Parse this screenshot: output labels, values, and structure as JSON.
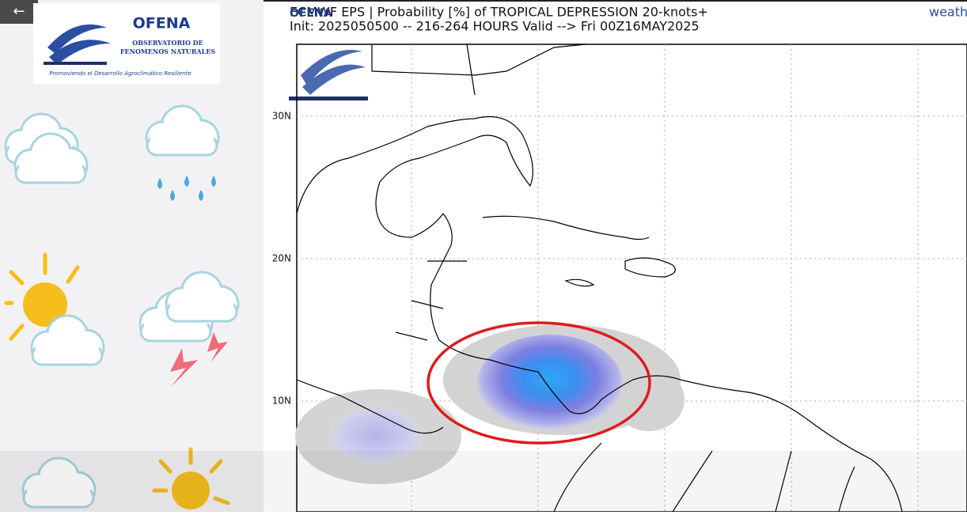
{
  "back_button": {
    "label": "←"
  },
  "logo": {
    "title": "OFENA",
    "subtitle_1": "OBSERVATORIO DE",
    "subtitle_2": "FENOMENOS NATURALES",
    "slogan": "Promoviendo el Desarrollo Agroclimático Resiliente"
  },
  "map": {
    "title": "ECMWF EPS | Probability [%] of TROPICAL DEPRESSION 20-knots+",
    "subtitle": "Init: 2025050500 -- 216-264 HOURS Valid --> Fri 00Z16MAY2025",
    "corner_text": "weath",
    "watermark": "OFENA",
    "lat_labels": [
      "30N",
      "20N",
      "10N"
    ]
  }
}
